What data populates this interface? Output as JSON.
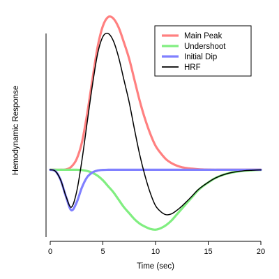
{
  "chart_data": {
    "type": "line",
    "title": "",
    "xlabel": "Time (sec)",
    "ylabel": "Hemodynamic Response",
    "xlim": [
      0,
      20
    ],
    "ylim": [
      -0.45,
      1.05
    ],
    "x_ticks": [
      0,
      5,
      10,
      15,
      20
    ],
    "y_ticks_shown": false,
    "grid": false,
    "legend_position": "top-right",
    "x": [
      0,
      0.5,
      1,
      1.5,
      2,
      2.5,
      3,
      3.5,
      4,
      4.5,
      5,
      5.5,
      6,
      6.5,
      7,
      7.5,
      8,
      8.5,
      9,
      9.5,
      10,
      10.5,
      11,
      11.5,
      12,
      12.5,
      13,
      13.5,
      14,
      14.5,
      15,
      15.5,
      16,
      16.5,
      17,
      17.5,
      18,
      18.5,
      19,
      19.5,
      20
    ],
    "series": [
      {
        "name": "Main Peak",
        "color": "#ff8080",
        "values": [
          0,
          0,
          0,
          0.002,
          0.02,
          0.07,
          0.18,
          0.37,
          0.6,
          0.82,
          0.96,
          1.02,
          1.01,
          0.95,
          0.85,
          0.74,
          0.6,
          0.46,
          0.34,
          0.24,
          0.16,
          0.11,
          0.07,
          0.045,
          0.028,
          0.017,
          0.011,
          0.007,
          0.004,
          0.002,
          0.001,
          0,
          0,
          0,
          0,
          0,
          0,
          0,
          0,
          0,
          0
        ]
      },
      {
        "name": "Undershoot",
        "color": "#80ee80",
        "values": [
          0,
          0,
          0,
          0,
          0,
          0,
          -0.002,
          -0.008,
          -0.02,
          -0.04,
          -0.07,
          -0.11,
          -0.15,
          -0.2,
          -0.25,
          -0.29,
          -0.33,
          -0.36,
          -0.38,
          -0.395,
          -0.4,
          -0.39,
          -0.37,
          -0.34,
          -0.3,
          -0.26,
          -0.22,
          -0.18,
          -0.14,
          -0.11,
          -0.085,
          -0.062,
          -0.045,
          -0.032,
          -0.022,
          -0.015,
          -0.01,
          -0.006,
          -0.004,
          -0.002,
          -0.001
        ]
      },
      {
        "name": "Initial Dip",
        "color": "#8080ff",
        "values": [
          0,
          -0.01,
          -0.07,
          -0.18,
          -0.27,
          -0.22,
          -0.12,
          -0.05,
          -0.018,
          -0.005,
          -0.001,
          0,
          0,
          0,
          0,
          0,
          0,
          0,
          0,
          0,
          0,
          0,
          0,
          0,
          0,
          0,
          0,
          0,
          0,
          0,
          0,
          0,
          0,
          0,
          0,
          0,
          0,
          0,
          0,
          0,
          0
        ]
      },
      {
        "name": "HRF",
        "color": "#000000",
        "values": [
          0,
          -0.01,
          -0.07,
          -0.178,
          -0.25,
          -0.15,
          0.058,
          0.312,
          0.562,
          0.775,
          0.889,
          0.91,
          0.86,
          0.75,
          0.6,
          0.45,
          0.27,
          0.1,
          -0.04,
          -0.155,
          -0.24,
          -0.28,
          -0.3,
          -0.295,
          -0.272,
          -0.243,
          -0.209,
          -0.173,
          -0.136,
          -0.108,
          -0.084,
          -0.062,
          -0.045,
          -0.032,
          -0.022,
          -0.015,
          -0.01,
          -0.006,
          -0.004,
          -0.002,
          -0.001
        ]
      }
    ]
  }
}
